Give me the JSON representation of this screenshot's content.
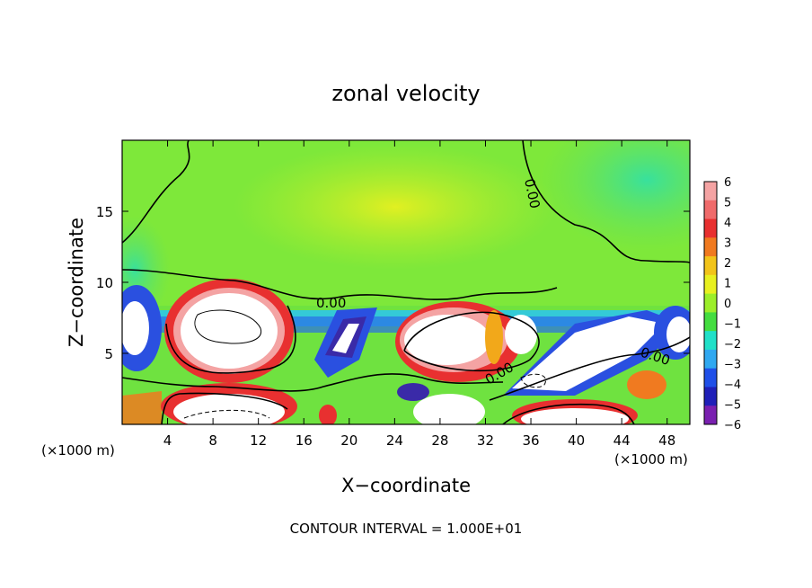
{
  "chart_data": {
    "type": "heatmap",
    "title": "zonal velocity",
    "xlabel": "X−coordinate",
    "ylabel": "Z−coordinate",
    "x_unit_left": "(×1000 m)",
    "x_unit_right": "(×1000 m)",
    "xlim": [
      0,
      50
    ],
    "ylim": [
      0,
      20
    ],
    "x_ticks": [
      4,
      8,
      12,
      16,
      20,
      24,
      28,
      32,
      36,
      40,
      44,
      48
    ],
    "y_ticks": [
      5,
      10,
      15
    ],
    "footnote": "CONTOUR INTERVAL = 1.000E+01",
    "contour_labels": [
      "0.00",
      "0.00",
      "0.00",
      "0.00"
    ],
    "colorbar": {
      "levels": [
        6,
        5,
        4,
        3,
        2,
        1,
        0,
        -1,
        -2,
        -3,
        -4,
        -5,
        -6
      ],
      "labels": [
        "6",
        "5",
        "4",
        "3",
        "2",
        "1",
        "0",
        "−1",
        "−2",
        "−3",
        "−4",
        "−5",
        "−6"
      ],
      "colors": [
        "#f4a3a3",
        "#f06b6b",
        "#e83030",
        "#f07a20",
        "#f2c41a",
        "#e8f020",
        "#9cee2a",
        "#44dd40",
        "#20e0c8",
        "#30a8f0",
        "#2050e8",
        "#2020b8",
        "#7a20b0"
      ]
    }
  }
}
